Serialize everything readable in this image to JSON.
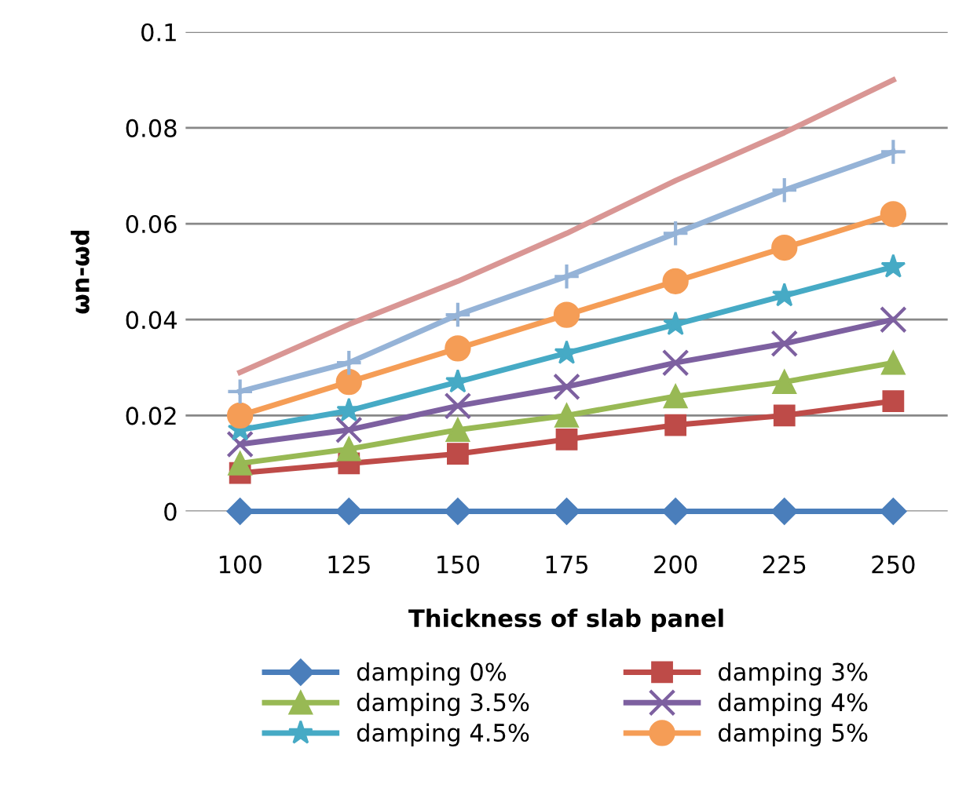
{
  "chart_data": {
    "type": "line",
    "xlabel": "Thickness of slab panel",
    "ylabel": "ωn-ωd",
    "categories": [
      "100",
      "125",
      "150",
      "175",
      "200",
      "225",
      "250"
    ],
    "series": [
      {
        "name": "damping 0%",
        "color": "#4a7ebb",
        "marker": "diamond",
        "values": [
          0,
          0,
          0,
          0,
          0,
          0,
          0
        ]
      },
      {
        "name": "damping 3%",
        "color": "#be4b48",
        "marker": "square",
        "values": [
          0.008,
          0.01,
          0.012,
          0.015,
          0.018,
          0.02,
          0.023
        ]
      },
      {
        "name": "damping 3.5%",
        "color": "#98b954",
        "marker": "triangle",
        "values": [
          0.01,
          0.013,
          0.017,
          0.02,
          0.024,
          0.027,
          0.031
        ]
      },
      {
        "name": "damping 4%",
        "color": "#7d60a0",
        "marker": "cross",
        "values": [
          0.014,
          0.017,
          0.022,
          0.026,
          0.031,
          0.035,
          0.04
        ]
      },
      {
        "name": "damping 4.5%",
        "color": "#46aac5",
        "marker": "star",
        "values": [
          0.017,
          0.021,
          0.027,
          0.033,
          0.039,
          0.045,
          0.051
        ]
      },
      {
        "name": "damping 5%",
        "color": "#f59d56",
        "marker": "circle",
        "values": [
          0.02,
          0.027,
          0.034,
          0.041,
          0.048,
          0.055,
          0.062
        ]
      },
      {
        "color": "#95b3d7",
        "marker": "cross",
        "values": [
          0.025,
          0.031,
          0.041,
          0.049,
          0.058,
          0.067,
          0.075
        ]
      },
      {
        "color": "#d99694",
        "marker": "none",
        "values": [
          0.029,
          0.039,
          0.048,
          0.058,
          0.069,
          0.079,
          0.09
        ]
      }
    ],
    "ylim": [
      0,
      0.1
    ],
    "yticks": [
      0,
      0.02,
      0.04,
      0.06,
      0.08,
      0.1
    ],
    "grid": "y",
    "legend": "bottom"
  }
}
